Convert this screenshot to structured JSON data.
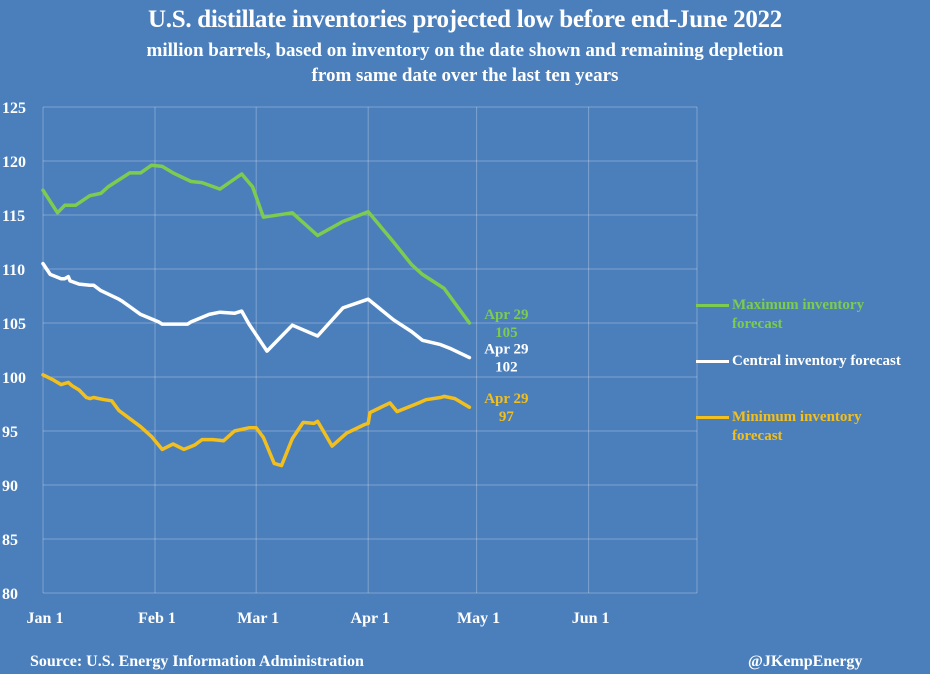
{
  "chart_data": {
    "type": "line",
    "title": "U.S. distillate inventories projected low before end-June 2022",
    "subtitle": "million barrels, based on inventory on the date shown and remaining depletion from same date over the last ten years",
    "xlabel": "",
    "ylabel": "",
    "ylim": [
      80,
      125
    ],
    "yticks": [
      80,
      85,
      90,
      95,
      100,
      105,
      110,
      115,
      120,
      125
    ],
    "xlim_days": [
      0,
      181
    ],
    "xticks": [
      {
        "label": "Jan 1",
        "day": 0
      },
      {
        "label": "Feb 1",
        "day": 31
      },
      {
        "label": "Mar 1",
        "day": 59
      },
      {
        "label": "Apr 1",
        "day": 90
      },
      {
        "label": "May 1",
        "day": 120
      },
      {
        "label": "Jun 1",
        "day": 151
      }
    ],
    "grid": true,
    "legend_position": "right",
    "x_unit": "day of year 2022 (0 = Jan 1)",
    "series": [
      {
        "name": "Maximum inventory forecast",
        "color": "#7dcb4f",
        "end_label": [
          "Apr 29",
          "105"
        ],
        "points": [
          [
            0,
            117.3
          ],
          [
            4,
            115.2
          ],
          [
            6,
            115.9
          ],
          [
            9,
            115.9
          ],
          [
            13,
            116.8
          ],
          [
            16,
            117.0
          ],
          [
            18,
            117.6
          ],
          [
            24,
            118.9
          ],
          [
            27,
            118.9
          ],
          [
            30,
            119.6
          ],
          [
            33,
            119.5
          ],
          [
            36,
            118.9
          ],
          [
            41,
            118.1
          ],
          [
            44,
            118.0
          ],
          [
            49,
            117.4
          ],
          [
            52,
            118.1
          ],
          [
            55,
            118.8
          ],
          [
            58,
            117.6
          ],
          [
            61,
            114.8
          ],
          [
            69,
            115.2
          ],
          [
            76,
            113.1
          ],
          [
            83,
            114.4
          ],
          [
            90,
            115.3
          ],
          [
            97,
            112.5
          ],
          [
            102,
            110.4
          ],
          [
            105,
            109.5
          ],
          [
            111,
            108.2
          ],
          [
            118,
            105.0
          ]
        ]
      },
      {
        "name": "Central inventory forecast",
        "color": "#ffffff",
        "end_label": [
          "Apr 29",
          "102"
        ],
        "points": [
          [
            0,
            110.5
          ],
          [
            2,
            109.5
          ],
          [
            5,
            109.1
          ],
          [
            6,
            109.1
          ],
          [
            7,
            109.3
          ],
          [
            7.5,
            108.9
          ],
          [
            10,
            108.6
          ],
          [
            13,
            108.5
          ],
          [
            14,
            108.5
          ],
          [
            16,
            108.0
          ],
          [
            21,
            107.2
          ],
          [
            22,
            107.0
          ],
          [
            27,
            105.8
          ],
          [
            32,
            105.1
          ],
          [
            33,
            104.9
          ],
          [
            40,
            104.9
          ],
          [
            41,
            105.1
          ],
          [
            46,
            105.8
          ],
          [
            49,
            106.0
          ],
          [
            53,
            105.9
          ],
          [
            55,
            106.1
          ],
          [
            57,
            104.9
          ],
          [
            62,
            102.4
          ],
          [
            69,
            104.8
          ],
          [
            76,
            103.8
          ],
          [
            83,
            106.4
          ],
          [
            90,
            107.2
          ],
          [
            97,
            105.3
          ],
          [
            102,
            104.2
          ],
          [
            105,
            103.4
          ],
          [
            110,
            103.0
          ],
          [
            113,
            102.6
          ],
          [
            118,
            101.8
          ]
        ]
      },
      {
        "name": "Minimum inventory forecast",
        "color": "#f3bf1c",
        "end_label": [
          "Apr 29",
          "97"
        ],
        "points": [
          [
            0,
            100.2
          ],
          [
            3,
            99.7
          ],
          [
            5,
            99.3
          ],
          [
            6,
            99.4
          ],
          [
            7,
            99.5
          ],
          [
            8,
            99.2
          ],
          [
            10,
            98.8
          ],
          [
            12,
            98.1
          ],
          [
            13,
            98.0
          ],
          [
            14,
            98.1
          ],
          [
            17,
            97.9
          ],
          [
            19,
            97.8
          ],
          [
            21,
            96.9
          ],
          [
            27,
            95.4
          ],
          [
            30,
            94.5
          ],
          [
            33,
            93.3
          ],
          [
            36,
            93.8
          ],
          [
            39,
            93.3
          ],
          [
            42,
            93.7
          ],
          [
            44,
            94.2
          ],
          [
            47,
            94.2
          ],
          [
            50,
            94.1
          ],
          [
            53,
            95.0
          ],
          [
            57,
            95.3
          ],
          [
            59,
            95.3
          ],
          [
            61,
            94.4
          ],
          [
            64,
            92.0
          ],
          [
            66,
            91.8
          ],
          [
            69,
            94.3
          ],
          [
            72,
            95.8
          ],
          [
            75,
            95.7
          ],
          [
            76,
            95.9
          ],
          [
            80,
            93.6
          ],
          [
            84,
            94.8
          ],
          [
            89,
            95.6
          ],
          [
            90,
            95.7
          ],
          [
            90.5,
            96.7
          ],
          [
            96,
            97.6
          ],
          [
            98,
            96.8
          ],
          [
            104,
            97.6
          ],
          [
            106,
            97.9
          ],
          [
            110,
            98.1
          ],
          [
            111,
            98.2
          ],
          [
            114,
            98.0
          ],
          [
            118,
            97.2
          ]
        ]
      }
    ]
  },
  "footer": {
    "source": "Source: U.S. Energy Information Administration",
    "credit": "@JKempEnergy"
  },
  "legend": [
    {
      "line1": "Maximum inventory",
      "line2": "forecast"
    },
    {
      "line1": "Central inventory forecast",
      "line2": ""
    },
    {
      "line1": "Minimum inventory",
      "line2": "forecast"
    }
  ]
}
